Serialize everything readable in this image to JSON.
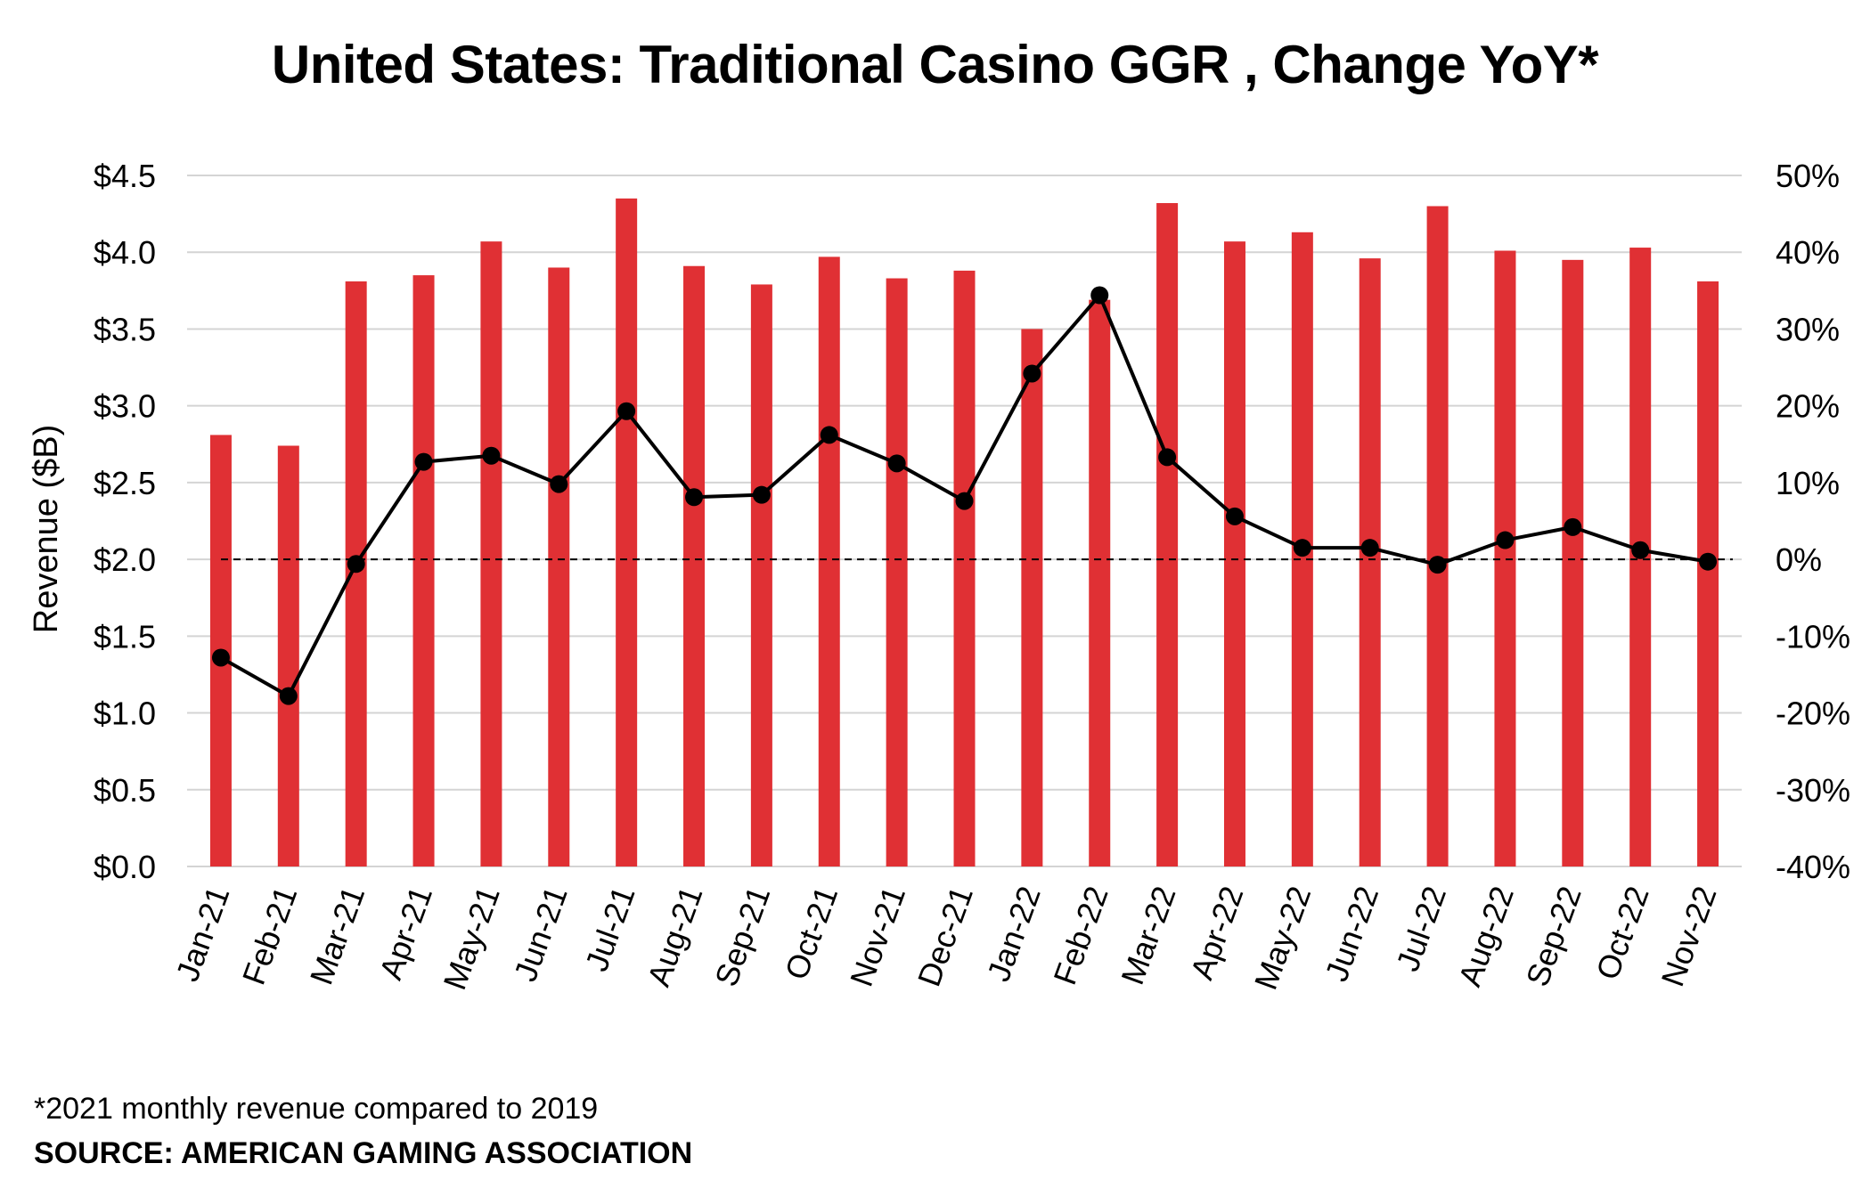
{
  "chart_data": {
    "type": "bar",
    "title": "United States: Traditional Casino GGR , Change YoY*",
    "xlabel": "",
    "ylabel": "Revenue ($B)",
    "y2label": "",
    "categories": [
      "Jan-21",
      "Feb-21",
      "Mar-21",
      "Apr-21",
      "May-21",
      "Jun-21",
      "Jul-21",
      "Aug-21",
      "Sep-21",
      "Oct-21",
      "Nov-21",
      "Dec-21",
      "Jan-22",
      "Feb-22",
      "Mar-22",
      "Apr-22",
      "May-22",
      "Jun-22",
      "Jul-22",
      "Aug-22",
      "Sep-22",
      "Oct-22",
      "Nov-22"
    ],
    "series": [
      {
        "type": "bar",
        "axis": "left",
        "color": "#e03034",
        "values": [
          2.81,
          2.74,
          3.81,
          3.85,
          4.07,
          3.9,
          4.35,
          3.91,
          3.79,
          3.97,
          3.83,
          3.88,
          3.5,
          3.69,
          4.32,
          4.07,
          4.13,
          3.96,
          4.3,
          4.01,
          3.95,
          4.03,
          3.81
        ]
      },
      {
        "type": "line",
        "axis": "right",
        "color": "#000000",
        "values": [
          -12.8,
          -17.8,
          -0.6,
          12.7,
          13.5,
          9.8,
          19.3,
          8.1,
          8.4,
          16.2,
          12.5,
          7.6,
          24.2,
          34.4,
          13.3,
          5.6,
          1.5,
          1.5,
          -0.7,
          2.5,
          4.2,
          1.2,
          -0.3
        ]
      }
    ],
    "yticks": [
      "$0.0",
      "$0.5",
      "$1.0",
      "$1.5",
      "$2.0",
      "$2.5",
      "$3.0",
      "$3.5",
      "$4.0",
      "$4.5"
    ],
    "y2ticks": [
      "-40%",
      "-30%",
      "-20%",
      "-10%",
      "0%",
      "10%",
      "20%",
      "30%",
      "40%",
      "50%"
    ],
    "ylim": [
      0,
      4.5
    ],
    "y2lim": [
      -40,
      50
    ],
    "zero_reference_line": {
      "style": "dashed",
      "value": 0
    },
    "grid": true,
    "legend": "none"
  },
  "footnote": "*2021 monthly revenue compared to 2019",
  "source": "SOURCE: AMERICAN GAMING ASSOCIATION"
}
